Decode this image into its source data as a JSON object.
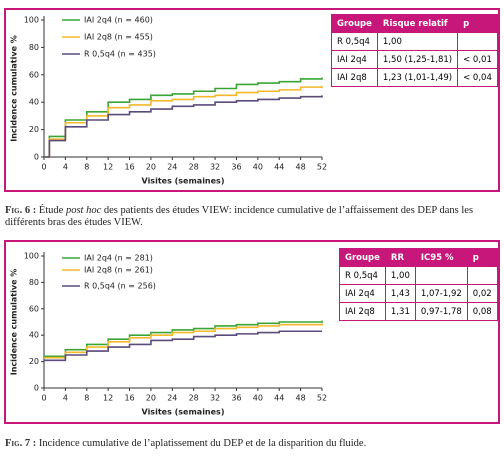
{
  "chart_data": [
    {
      "type": "line",
      "step": true,
      "xlabel": "Visites (semaines)",
      "ylabel": "Incidence cumulative %",
      "x": [
        0,
        1,
        4,
        8,
        12,
        16,
        20,
        24,
        28,
        32,
        36,
        40,
        44,
        48,
        52
      ],
      "xlim": [
        0,
        52
      ],
      "xticks": [
        0,
        4,
        8,
        12,
        16,
        20,
        24,
        28,
        32,
        36,
        40,
        44,
        48,
        52
      ],
      "ylim": [
        0,
        100
      ],
      "yticks": [
        0,
        20,
        40,
        60,
        80,
        100
      ],
      "series": [
        {
          "name": "IAI 2q4 (n = 460)",
          "color": "#3aa535",
          "values": [
            0,
            15,
            27,
            33,
            40,
            42,
            45,
            46,
            48,
            50,
            53,
            54,
            55,
            57,
            58
          ]
        },
        {
          "name": "IAI 2q8 (n = 455)",
          "color": "#f5b82a",
          "values": [
            0,
            13,
            25,
            30,
            36,
            38,
            41,
            42,
            44,
            45,
            47,
            48,
            49,
            51,
            52
          ]
        },
        {
          "name": "R 0,5q4 (n = 435)",
          "color": "#5b4a7c",
          "values": [
            0,
            12,
            22,
            27,
            31,
            33,
            35,
            37,
            38,
            40,
            41,
            42,
            43,
            44,
            45
          ]
        }
      ]
    },
    {
      "type": "line",
      "step": true,
      "xlabel": "Visites (semaines)",
      "ylabel": "Incidence cumulative %",
      "x": [
        0,
        4,
        8,
        12,
        16,
        20,
        24,
        28,
        32,
        36,
        40,
        44,
        48,
        52
      ],
      "xlim": [
        0,
        52
      ],
      "xticks": [
        0,
        4,
        8,
        12,
        16,
        20,
        24,
        28,
        32,
        36,
        40,
        44,
        48,
        52
      ],
      "ylim": [
        0,
        100
      ],
      "yticks": [
        0,
        20,
        40,
        60,
        80,
        100
      ],
      "series": [
        {
          "name": "IAI 2q4 (n = 281)",
          "color": "#3aa535",
          "values": [
            24,
            29,
            33,
            37,
            40,
            42,
            44,
            45,
            47,
            48,
            49,
            50,
            50,
            51
          ]
        },
        {
          "name": "IAI 2q8 (n = 261)",
          "color": "#f5b82a",
          "values": [
            23,
            27,
            31,
            35,
            38,
            40,
            42,
            43,
            45,
            46,
            47,
            48,
            48,
            49
          ]
        },
        {
          "name": "R 0,5q4 (n = 256)",
          "color": "#5b4a7c",
          "values": [
            21,
            25,
            28,
            31,
            33,
            36,
            37,
            39,
            40,
            41,
            42,
            43,
            43,
            43
          ]
        }
      ]
    }
  ],
  "tables": [
    {
      "header": [
        "Groupe",
        "Risque relatif",
        "p"
      ],
      "rows": [
        [
          "R 0,5q4",
          "1,00"
        ],
        [
          "IAI 2q4",
          "1,50 (1,25-1,81)",
          "< 0,01"
        ],
        [
          "IAI 2q8",
          "1,23 (1,01-1,49)",
          "< 0,04"
        ]
      ]
    },
    {
      "header": [
        "Groupe",
        "RR",
        "IC95 %",
        "p"
      ],
      "rows": [
        [
          "R 0,5q4",
          "1,00"
        ],
        [
          "IAI 2q4",
          "1,43",
          "1,07-1,92",
          "0,02"
        ],
        [
          "IAI 2q8",
          "1,31",
          "0,97-1,78",
          "0,08"
        ]
      ]
    }
  ],
  "captions": [
    {
      "label": "Fig. 6 :",
      "before": "Étude",
      "italic": "post hoc",
      "after": "des patients des études VIEW: incidence cumulative de l’affaissement des DEP dans les différents bras des études VIEW."
    },
    {
      "label": "Fig. 7 :",
      "before": "Incidence cumulative de l’aplatissement du DEP et de la disparition du fluide."
    }
  ]
}
